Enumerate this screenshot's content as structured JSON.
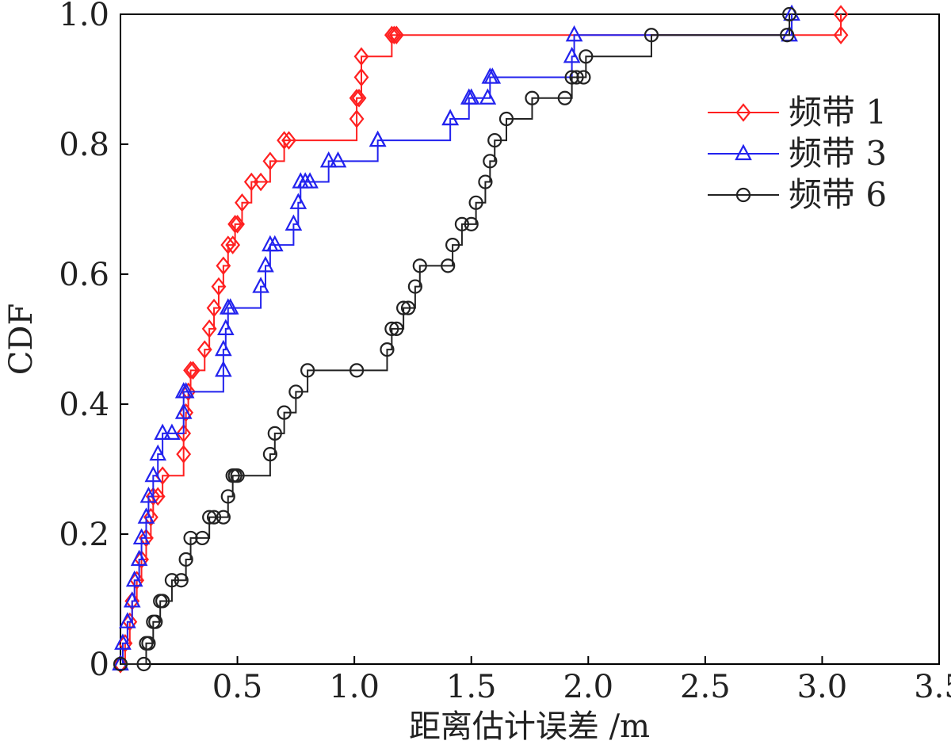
{
  "chart_data": {
    "type": "line",
    "step": true,
    "xlabel": "距离估计误差 /m",
    "ylabel": "CDF",
    "xlim": [
      0,
      3.5
    ],
    "ylim": [
      0,
      1.0
    ],
    "xticks": [
      "0.5",
      "1.0",
      "1.5",
      "2.0",
      "2.5",
      "3.0",
      "3.5"
    ],
    "yticks": [
      "0",
      "0.2",
      "0.4",
      "0.6",
      "0.8",
      "1.0"
    ],
    "grid": false,
    "legend_position": "top-right",
    "series": [
      {
        "name": "频带 1",
        "color": "#ff2020",
        "marker": "diamond",
        "x": [
          0.0,
          0.02,
          0.04,
          0.05,
          0.07,
          0.09,
          0.11,
          0.13,
          0.14,
          0.16,
          0.18,
          0.27,
          0.27,
          0.28,
          0.29,
          0.3,
          0.31,
          0.36,
          0.38,
          0.4,
          0.42,
          0.44,
          0.46,
          0.48,
          0.49,
          0.5,
          0.52,
          0.56,
          0.6,
          0.64,
          0.7,
          0.72,
          1.01,
          1.01,
          1.02,
          1.03,
          1.03,
          1.16,
          1.17,
          1.18,
          3.08,
          3.08
        ],
        "y": [
          0.0,
          0.032,
          0.065,
          0.097,
          0.129,
          0.161,
          0.194,
          0.226,
          0.258,
          0.258,
          0.29,
          0.323,
          0.355,
          0.387,
          0.419,
          0.452,
          0.452,
          0.484,
          0.516,
          0.548,
          0.581,
          0.613,
          0.645,
          0.645,
          0.677,
          0.677,
          0.71,
          0.742,
          0.742,
          0.774,
          0.806,
          0.806,
          0.839,
          0.871,
          0.871,
          0.903,
          0.935,
          0.968,
          0.968,
          0.968,
          0.968,
          1.0
        ]
      },
      {
        "name": "频带 3",
        "color": "#2222ee",
        "marker": "triangle",
        "x": [
          0.0,
          0.01,
          0.03,
          0.05,
          0.06,
          0.08,
          0.09,
          0.11,
          0.12,
          0.14,
          0.16,
          0.18,
          0.22,
          0.27,
          0.27,
          0.28,
          0.44,
          0.44,
          0.45,
          0.46,
          0.47,
          0.6,
          0.62,
          0.64,
          0.66,
          0.74,
          0.76,
          0.77,
          0.79,
          0.81,
          0.89,
          0.93,
          1.1,
          1.1,
          1.41,
          1.41,
          1.49,
          1.5,
          1.57,
          1.58,
          1.59,
          1.93,
          1.94,
          2.86,
          2.87
        ],
        "y": [
          0.0,
          0.032,
          0.065,
          0.097,
          0.129,
          0.161,
          0.194,
          0.226,
          0.258,
          0.29,
          0.323,
          0.355,
          0.355,
          0.387,
          0.419,
          0.419,
          0.452,
          0.484,
          0.516,
          0.548,
          0.548,
          0.581,
          0.613,
          0.645,
          0.645,
          0.677,
          0.71,
          0.742,
          0.742,
          0.742,
          0.774,
          0.774,
          0.806,
          0.806,
          0.839,
          0.839,
          0.871,
          0.871,
          0.871,
          0.903,
          0.903,
          0.935,
          0.968,
          0.968,
          1.0
        ]
      },
      {
        "name": "频带 6",
        "color": "#222222",
        "marker": "circle",
        "x": [
          0.0,
          0.1,
          0.11,
          0.12,
          0.14,
          0.15,
          0.17,
          0.18,
          0.22,
          0.26,
          0.28,
          0.3,
          0.35,
          0.38,
          0.4,
          0.44,
          0.46,
          0.48,
          0.49,
          0.5,
          0.64,
          0.66,
          0.7,
          0.75,
          0.8,
          1.01,
          1.14,
          1.16,
          1.18,
          1.21,
          1.23,
          1.26,
          1.28,
          1.4,
          1.42,
          1.46,
          1.5,
          1.52,
          1.56,
          1.58,
          1.6,
          1.65,
          1.76,
          1.9,
          1.93,
          1.95,
          1.98,
          1.99,
          2.27,
          2.85,
          2.86
        ],
        "y": [
          0.0,
          0.0,
          0.032,
          0.032,
          0.065,
          0.065,
          0.097,
          0.097,
          0.129,
          0.129,
          0.161,
          0.194,
          0.194,
          0.226,
          0.226,
          0.226,
          0.258,
          0.29,
          0.29,
          0.29,
          0.323,
          0.355,
          0.387,
          0.419,
          0.452,
          0.452,
          0.484,
          0.516,
          0.516,
          0.548,
          0.548,
          0.581,
          0.613,
          0.613,
          0.645,
          0.677,
          0.677,
          0.71,
          0.742,
          0.774,
          0.806,
          0.839,
          0.871,
          0.871,
          0.903,
          0.903,
          0.903,
          0.935,
          0.968,
          0.968,
          1.0
        ]
      }
    ]
  }
}
